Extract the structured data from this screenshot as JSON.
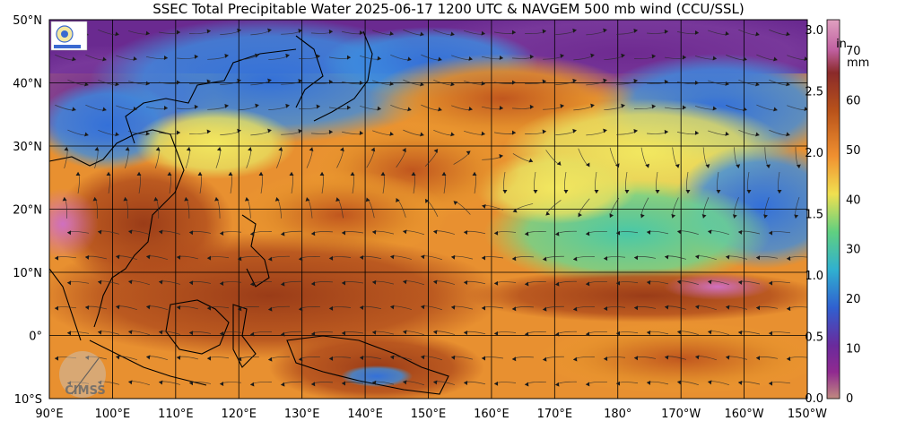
{
  "title": "SSEC Total Precipitable Water  2025-06-17 1200 UTC & NAVGEM 500 mb wind (CCU/SSL)",
  "lat_labels": [
    "50°N",
    "40°N",
    "30°N",
    "20°N",
    "10°N",
    "0°",
    "10°S"
  ],
  "lon_labels": [
    "90°E",
    "100°E",
    "110°E",
    "120°E",
    "130°E",
    "140°E",
    "150°E",
    "160°E",
    "170°E",
    "180°",
    "170°W",
    "160°W",
    "150°W"
  ],
  "inch_scale": {
    "unit": "in",
    "ticks": [
      "3.0",
      "2.5",
      "2.0",
      "1.5",
      "1.0",
      "0.5",
      "0.0"
    ]
  },
  "mm_scale": {
    "unit": "mm",
    "ticks": [
      "70",
      "60",
      "50",
      "40",
      "30",
      "20",
      "10",
      "0"
    ]
  },
  "logo_text": "CIMSS",
  "colors": {
    "very_dry": "#7a2a8c",
    "dry": "#3a6fd8",
    "moderate": "#3fc6a0",
    "moist": "#e6e655",
    "wet": "#f0a030",
    "very_wet": "#b8521a",
    "extreme": "#d070c0"
  }
}
